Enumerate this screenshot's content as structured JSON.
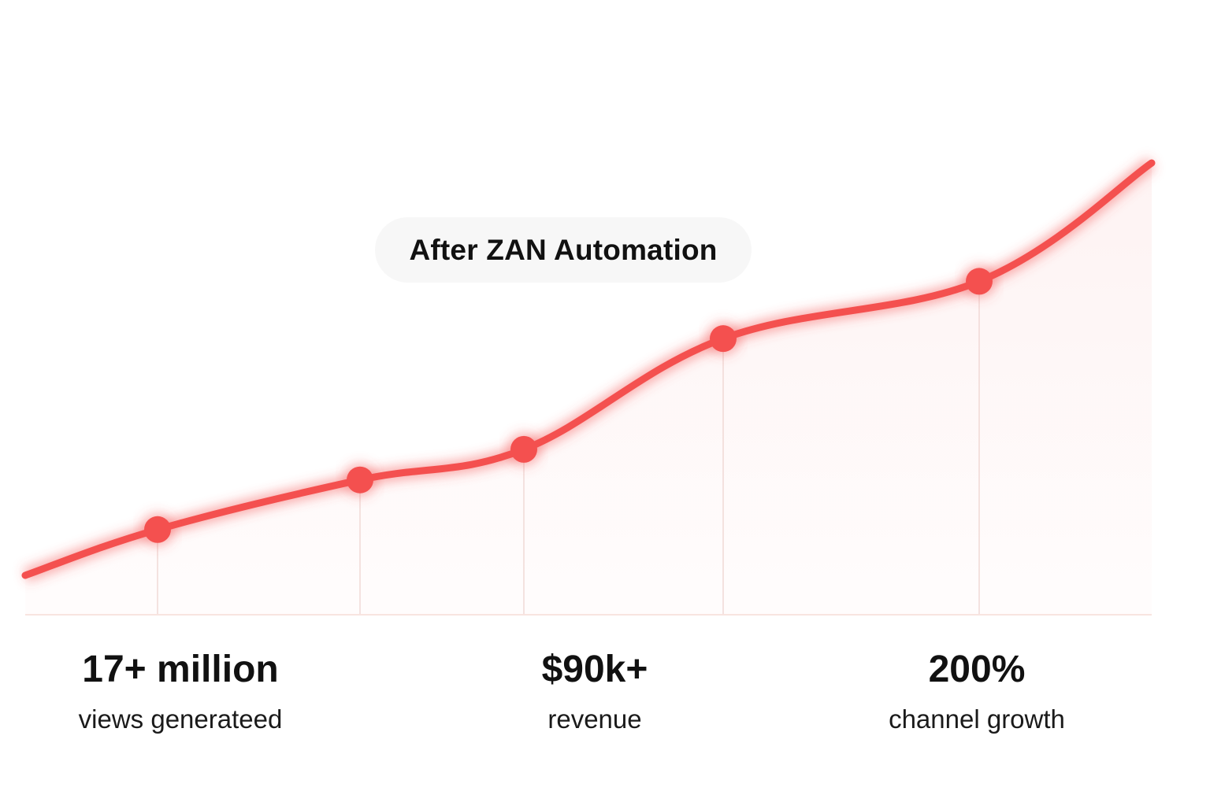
{
  "chart_data": {
    "type": "line",
    "title": "",
    "xlabel": "",
    "ylabel": "",
    "grid": false,
    "legend": "none",
    "line_color": "#f4504f",
    "annotation": "After ZAN Automation",
    "series": [
      {
        "values": [
          0,
          12,
          25,
          33,
          62,
          77,
          108
        ]
      }
    ],
    "markers": [
      1,
      2,
      3,
      4,
      5
    ],
    "ylim": [
      0,
      110
    ]
  },
  "stats": [
    {
      "value": "17+ million",
      "label": "views generateed"
    },
    {
      "value": "$90k+",
      "label": "revenue"
    },
    {
      "value": "200%",
      "label": "channel growth"
    }
  ]
}
